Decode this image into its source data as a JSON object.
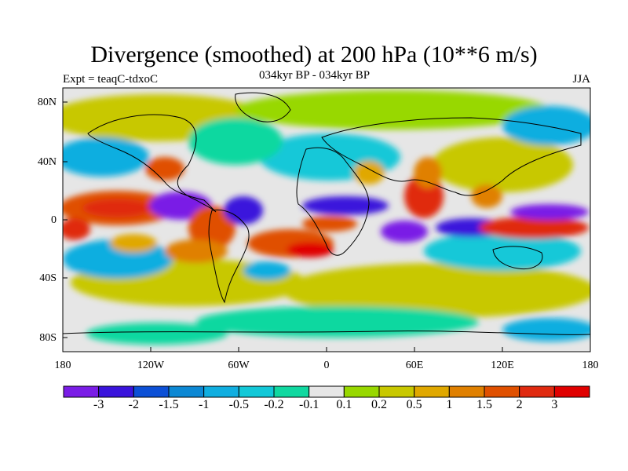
{
  "title": "Divergence (smoothed) at 200 hPa (10**6 m/s)",
  "subtitle_left": "Expt = teaqC-tdxoC",
  "subtitle_center": "034kyr BP - 034kyr BP",
  "subtitle_right": "JJA",
  "y_ticks": [
    "80N",
    "40N",
    "0",
    "40S",
    "80S"
  ],
  "x_ticks": [
    "180",
    "120W",
    "60W",
    "0",
    "60E",
    "120E",
    "180"
  ],
  "colorbar": {
    "labels": [
      "-3",
      "-2",
      "-1.5",
      "-1",
      "-0.5",
      "-0.2",
      "-0.1",
      "0.1",
      "0.2",
      "0.5",
      "1",
      "1.5",
      "2",
      "3"
    ],
    "colors": [
      "#7a1de6",
      "#3a14dc",
      "#0c50d6",
      "#0c88d4",
      "#10aee0",
      "#12c8d8",
      "#10d8a0",
      "#e6e6e6",
      "#98d800",
      "#c8c800",
      "#e0a800",
      "#e08000",
      "#e05000",
      "#e02a10",
      "#e00000"
    ]
  }
}
